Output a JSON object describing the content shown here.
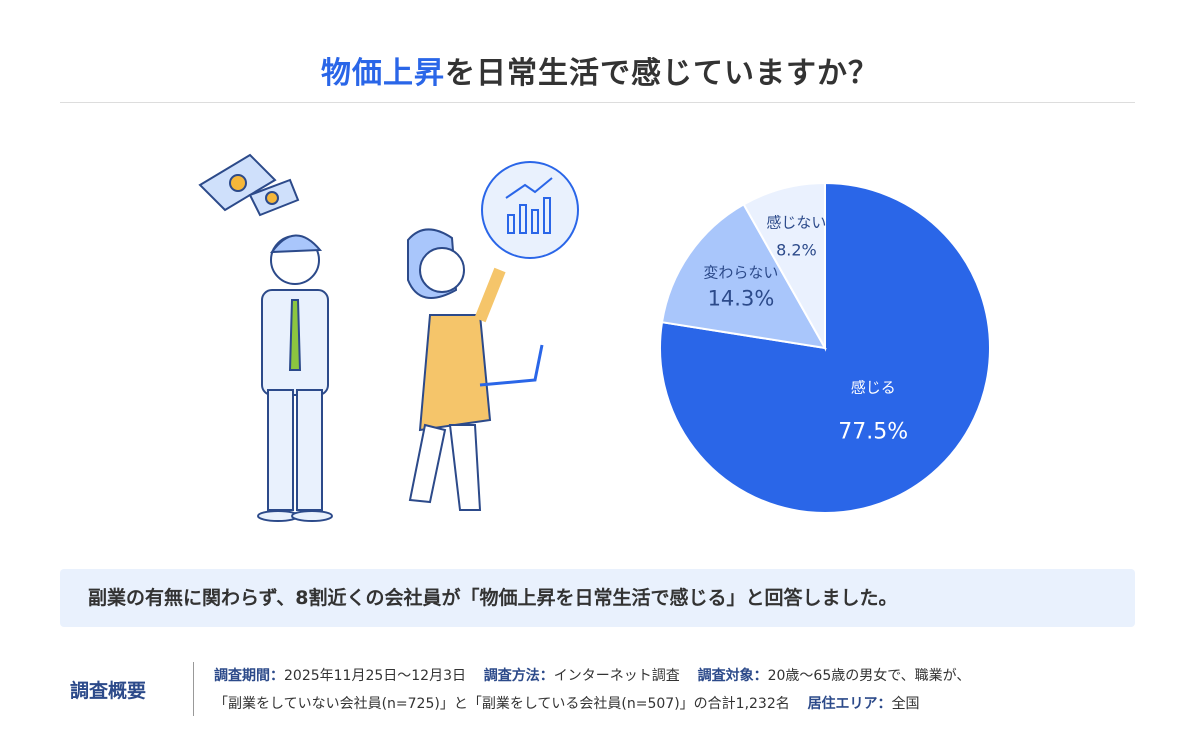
{
  "title": {
    "highlight": "物価上昇",
    "rest": "を日常生活で感じていますか？"
  },
  "note": "副業の有無に関わらず、8割近くの会社員が「物価上昇を日常生活で感じる」と回答しました。",
  "summary": {
    "heading": "調査概要",
    "period_label": "調査期間：",
    "period": "2025年11月25日〜12月3日",
    "method_label": "調査方法：",
    "method": "インターネット調査",
    "target_label": "調査対象：",
    "target": "20歳〜65歳の男女で、職業が、",
    "target2": "「副業をしていない会社員(n=725)」と「副業をしている会社員(n=507)」の合計1,232名",
    "area_label": "居住エリア：",
    "area": "全国"
  },
  "chart_data": {
    "type": "pie",
    "categories": [
      "感じる",
      "変わらない",
      "感じない"
    ],
    "values": [
      77.5,
      14.3,
      8.2
    ],
    "labels": [
      "77.5%",
      "14.3%",
      "8.2%"
    ],
    "colors": [
      "#2a66e8",
      "#a9c6fb",
      "#eaf1fe"
    ],
    "label_colors": [
      "#ffffff",
      "#2c4a8a",
      "#2c4a8a"
    ],
    "start": "top",
    "direction": "clockwise",
    "legend": "none"
  }
}
